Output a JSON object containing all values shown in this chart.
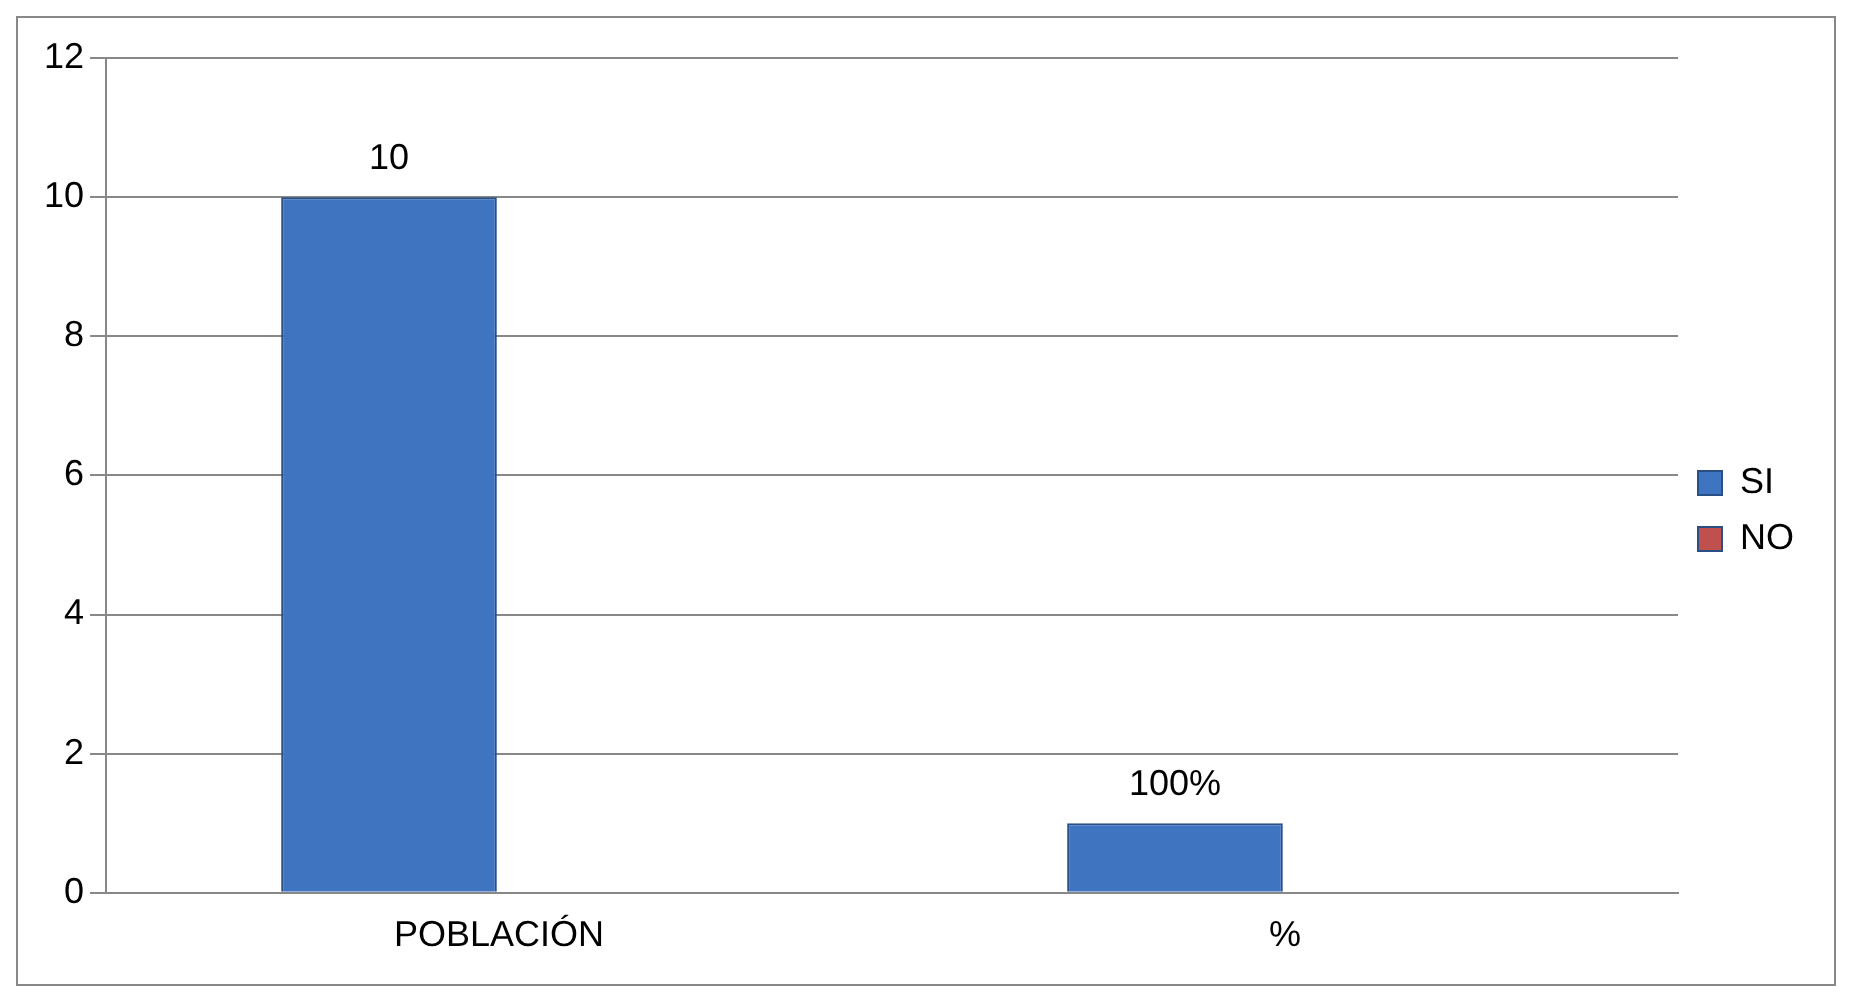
{
  "chart_data": {
    "type": "bar",
    "categories": [
      "POBLACIÓN",
      "%"
    ],
    "series": [
      {
        "name": "SI",
        "color": "#3f74c0",
        "values": [
          10,
          1
        ],
        "value_labels": [
          "10",
          "100%"
        ]
      },
      {
        "name": "NO",
        "color": "#c0504d",
        "values": [
          null,
          null
        ]
      }
    ],
    "ylim": [
      0,
      12
    ],
    "yticks": [
      0,
      2,
      4,
      6,
      8,
      10,
      12
    ],
    "grid": "y",
    "legend": "right"
  }
}
